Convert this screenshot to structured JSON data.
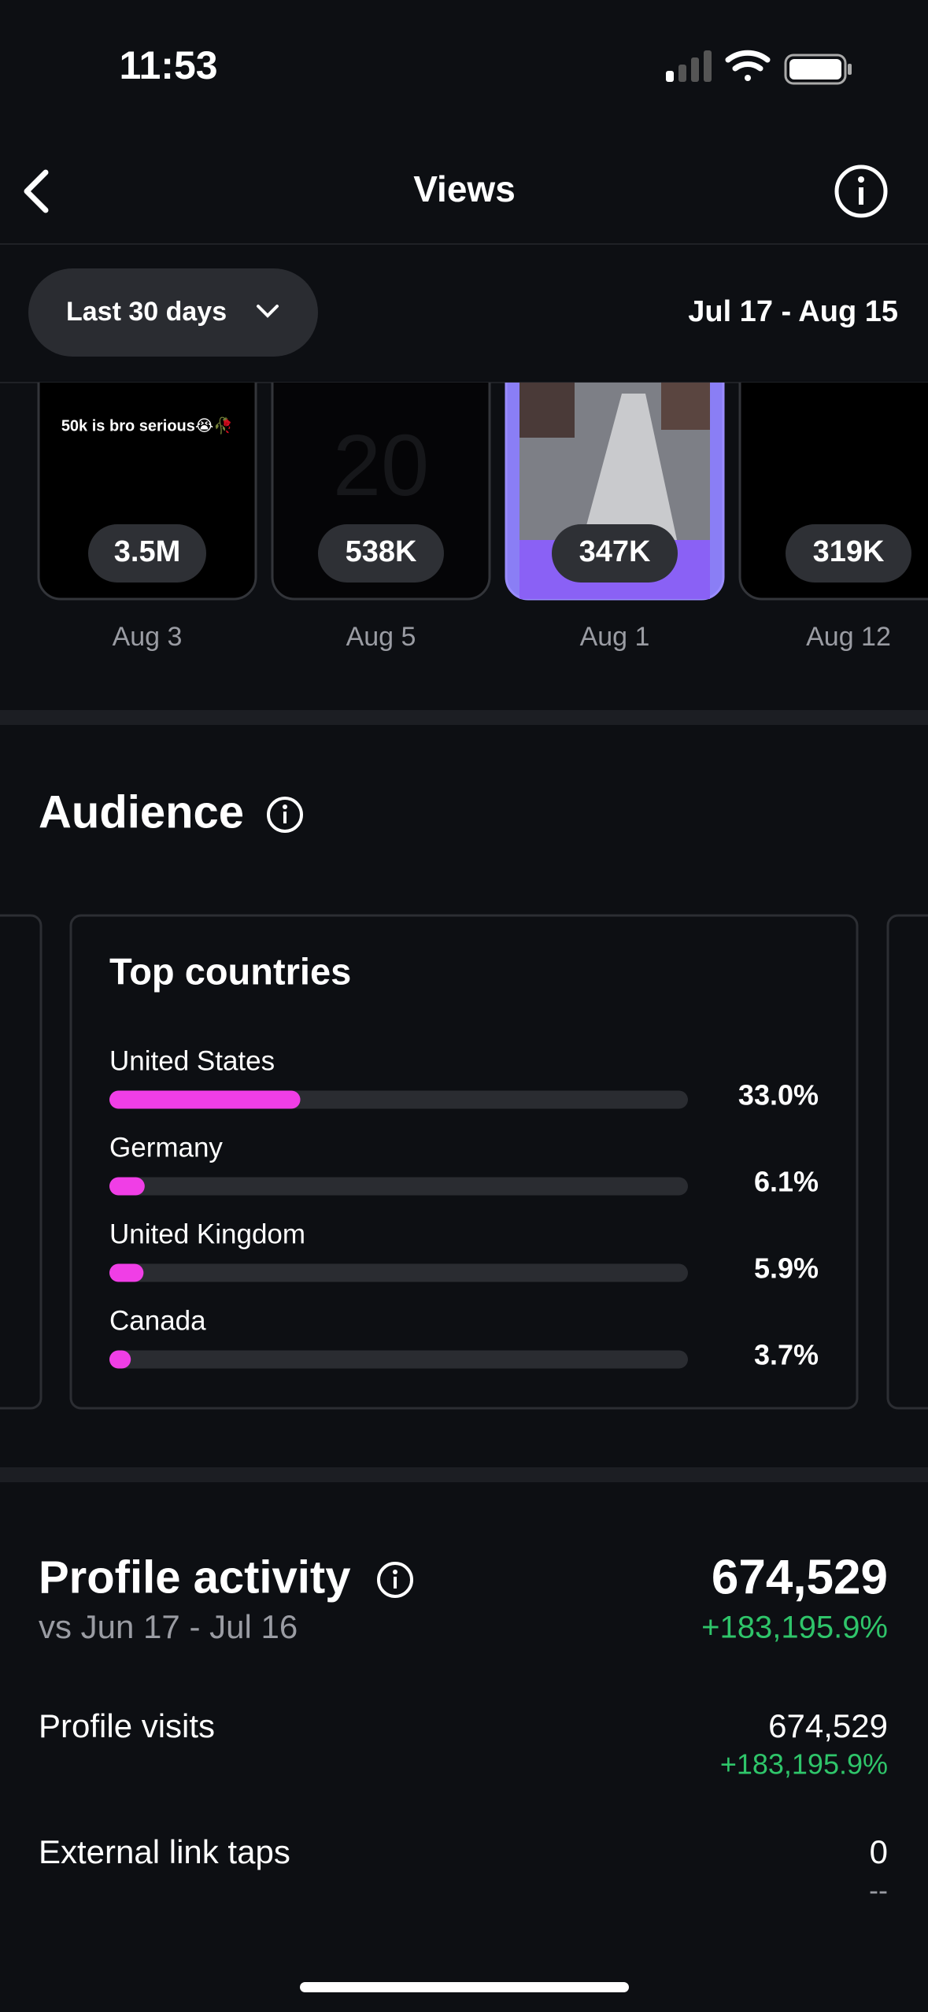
{
  "status_bar": {
    "time": "11:53"
  },
  "header": {
    "title": "Views"
  },
  "filter": {
    "period": "Last 30 days",
    "date_range": "Jul 17 - Aug 15"
  },
  "videos": [
    {
      "views": "3.5M",
      "date": "Aug 3",
      "caption": "50k is bro serious😭🥀"
    },
    {
      "views": "538K",
      "date": "Aug 5"
    },
    {
      "views": "347K",
      "date": "Aug 1"
    },
    {
      "views": "319K",
      "date": "Aug 12"
    }
  ],
  "audience": {
    "title": "Audience",
    "top_countries": {
      "title": "Top countries",
      "categories": [
        "United States",
        "Germany",
        "United Kingdom",
        "Canada"
      ],
      "values": [
        33.0,
        6.1,
        5.9,
        3.7
      ],
      "value_labels": [
        "33.0%",
        "6.1%",
        "5.9%",
        "3.7%"
      ],
      "xlim": [
        0,
        100
      ],
      "color": "#f03ee6"
    }
  },
  "profile_activity": {
    "title": "Profile activity",
    "comparison": "vs Jun 17 - Jul 16",
    "total": "674,529",
    "change": "+183,195.9%",
    "rows": [
      {
        "label": "Profile visits",
        "value": "674,529",
        "change": "+183,195.9%"
      },
      {
        "label": "External link taps",
        "value": "0",
        "change": "--"
      }
    ]
  }
}
